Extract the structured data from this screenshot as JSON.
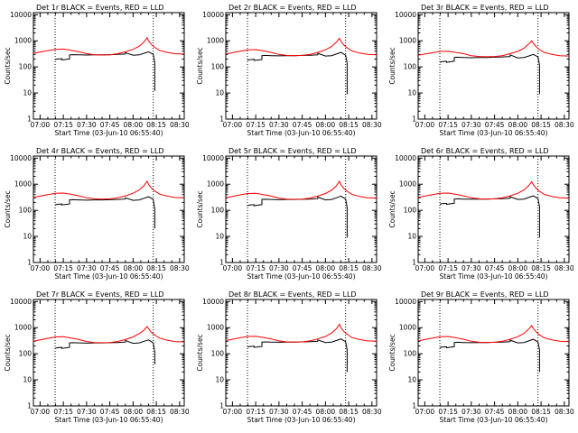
{
  "chart_data": {
    "type": "line",
    "layout": "3x3 grid",
    "common": {
      "xlabel": "Start Time (03-Jun-10 06:55:40)",
      "ylabel": "Counts/sec",
      "x_tick_labels": [
        "07:00",
        "07:15",
        "07:30",
        "07:45",
        "08:00",
        "08:15",
        "08:30"
      ],
      "x_tick_minutes": [
        0,
        15,
        30,
        45,
        60,
        75,
        90
      ],
      "xlim_minutes": [
        -4.3,
        93
      ],
      "y_tick_labels": [
        "1",
        "10",
        "100",
        "1000",
        "10000"
      ],
      "y_tick_values": [
        1,
        10,
        100,
        1000,
        10000
      ],
      "ylim": [
        1,
        12000
      ],
      "y_scale": "log",
      "vertical_dotted_lines_minutes": [
        9.7,
        73
      ],
      "colors": {
        "events": "#000000",
        "lld": "#ff0000"
      }
    },
    "panels": [
      {
        "title": "Det 1r BLACK = Events, RED = LLD",
        "series": [
          {
            "name": "Events",
            "x": [
              9.7,
              11,
              14,
              14,
              17,
              19,
              19,
              21,
              25,
              30,
              35,
              40,
              45,
              50,
              55,
              55,
              60,
              64,
              67,
              70,
              73,
              74,
              74
            ],
            "y": [
              190,
              200,
              205,
              185,
              195,
              200,
              290,
              295,
              290,
              285,
              290,
              290,
              295,
              300,
              310,
              350,
              280,
              290,
              330,
              380,
              300,
              150,
              12
            ]
          },
          {
            "name": "LLD",
            "x": [
              -4.3,
              0,
              5,
              10,
              15,
              20,
              25,
              30,
              35,
              40,
              45,
              50,
              55,
              60,
              64,
              67,
              69,
              70,
              72,
              74,
              77,
              82,
              87,
              93
            ],
            "y": [
              330,
              370,
              420,
              470,
              480,
              430,
              380,
              320,
              290,
              285,
              290,
              320,
              380,
              470,
              620,
              900,
              1300,
              1000,
              700,
              560,
              430,
              360,
              320,
              310
            ]
          }
        ]
      },
      {
        "title": "Det 2r BLACK = Events, RED = LLD",
        "series": [
          {
            "name": "Events",
            "x": [
              9.7,
              11,
              14,
              14,
              17,
              19,
              19,
              21,
              25,
              30,
              35,
              40,
              45,
              50,
              55,
              55,
              60,
              64,
              67,
              70,
              73,
              74,
              74
            ],
            "y": [
              180,
              190,
              195,
              175,
              185,
              190,
              270,
              275,
              270,
              265,
              270,
              270,
              275,
              280,
              290,
              330,
              260,
              270,
              310,
              360,
              280,
              140,
              9
            ]
          },
          {
            "name": "LLD",
            "x": [
              -4.3,
              0,
              5,
              10,
              15,
              20,
              25,
              30,
              35,
              40,
              45,
              50,
              55,
              60,
              64,
              67,
              69,
              70,
              72,
              74,
              77,
              82,
              87,
              93
            ],
            "y": [
              310,
              350,
              400,
              450,
              460,
              410,
              360,
              300,
              275,
              270,
              275,
              300,
              360,
              450,
              600,
              880,
              1250,
              960,
              680,
              540,
              410,
              340,
              300,
              290
            ]
          }
        ]
      },
      {
        "title": "Det 3r BLACK = Events, RED = LLD",
        "series": [
          {
            "name": "Events",
            "x": [
              9.7,
              11,
              14,
              14,
              17,
              19,
              19,
              21,
              25,
              30,
              35,
              40,
              45,
              50,
              55,
              55,
              60,
              64,
              67,
              70,
              73,
              74,
              74
            ],
            "y": [
              150,
              160,
              165,
              150,
              160,
              165,
              230,
              235,
              230,
              225,
              230,
              230,
              235,
              240,
              250,
              290,
              220,
              230,
              260,
              300,
              240,
              120,
              9
            ]
          },
          {
            "name": "LLD",
            "x": [
              -4.3,
              0,
              5,
              10,
              15,
              20,
              25,
              30,
              35,
              40,
              45,
              50,
              55,
              60,
              64,
              67,
              69,
              70,
              72,
              74,
              77,
              82,
              87,
              93
            ],
            "y": [
              280,
              310,
              350,
              390,
              400,
              360,
              320,
              270,
              250,
              245,
              250,
              270,
              320,
              390,
              520,
              750,
              1000,
              800,
              580,
              460,
              360,
              300,
              270,
              260
            ]
          }
        ]
      },
      {
        "title": "Det 4r BLACK = Events, RED = LLD",
        "series": [
          {
            "name": "Events",
            "x": [
              9.7,
              11,
              14,
              14,
              17,
              19,
              19,
              21,
              25,
              30,
              35,
              40,
              45,
              50,
              55,
              55,
              60,
              64,
              67,
              70,
              73,
              74,
              74
            ],
            "y": [
              160,
              170,
              175,
              160,
              170,
              175,
              250,
              255,
              250,
              245,
              250,
              250,
              255,
              260,
              270,
              300,
              240,
              250,
              290,
              330,
              260,
              110,
              20
            ]
          },
          {
            "name": "LLD",
            "x": [
              -4.3,
              0,
              5,
              10,
              15,
              20,
              25,
              30,
              35,
              40,
              45,
              50,
              55,
              60,
              64,
              67,
              69,
              70,
              72,
              74,
              77,
              82,
              87,
              93
            ],
            "y": [
              310,
              350,
              400,
              450,
              460,
              410,
              360,
              300,
              275,
              270,
              275,
              300,
              360,
              450,
              600,
              880,
              1300,
              980,
              690,
              550,
              420,
              350,
              310,
              300
            ]
          }
        ]
      },
      {
        "title": "Det 5r BLACK = Events, RED = LLD",
        "series": [
          {
            "name": "Events",
            "x": [
              9.7,
              11,
              14,
              14,
              17,
              19,
              19,
              21,
              25,
              30,
              35,
              40,
              45,
              50,
              55,
              55,
              60,
              64,
              67,
              70,
              73,
              74,
              74
            ],
            "y": [
              150,
              160,
              165,
              150,
              160,
              165,
              260,
              265,
              260,
              255,
              260,
              260,
              265,
              270,
              280,
              320,
              250,
              260,
              300,
              350,
              270,
              130,
              9
            ]
          },
          {
            "name": "LLD",
            "x": [
              -4.3,
              0,
              5,
              10,
              15,
              20,
              25,
              30,
              35,
              40,
              45,
              50,
              55,
              60,
              64,
              67,
              69,
              70,
              72,
              74,
              77,
              82,
              87,
              93
            ],
            "y": [
              300,
              340,
              390,
              440,
              450,
              400,
              350,
              295,
              270,
              265,
              270,
              295,
              350,
              440,
              590,
              870,
              1300,
              960,
              680,
              540,
              410,
              340,
              300,
              290
            ]
          }
        ]
      },
      {
        "title": "Det 6r BLACK = Events, RED = LLD",
        "series": [
          {
            "name": "Events",
            "x": [
              9.7,
              11,
              14,
              14,
              17,
              19,
              19,
              21,
              25,
              30,
              35,
              40,
              45,
              50,
              55,
              55,
              60,
              64,
              67,
              70,
              73,
              74,
              74
            ],
            "y": [
              170,
              180,
              185,
              170,
              180,
              185,
              270,
              275,
              270,
              265,
              270,
              270,
              275,
              280,
              290,
              330,
              260,
              270,
              310,
              360,
              280,
              140,
              9
            ]
          },
          {
            "name": "LLD",
            "x": [
              -4.3,
              0,
              5,
              10,
              15,
              20,
              25,
              30,
              35,
              40,
              45,
              50,
              55,
              60,
              64,
              67,
              69,
              70,
              72,
              74,
              77,
              82,
              87,
              93
            ],
            "y": [
              310,
              350,
              400,
              450,
              460,
              410,
              360,
              300,
              275,
              270,
              275,
              300,
              360,
              450,
              600,
              880,
              1250,
              960,
              680,
              540,
              410,
              340,
              300,
              290
            ]
          }
        ]
      },
      {
        "title": "Det 7r BLACK = Events, RED = LLD",
        "series": [
          {
            "name": "Events",
            "x": [
              9.7,
              11,
              14,
              14,
              17,
              19,
              19,
              21,
              25,
              30,
              35,
              40,
              45,
              50,
              55,
              55,
              60,
              64,
              67,
              70,
              73,
              74,
              74
            ],
            "y": [
              160,
              170,
              175,
              160,
              170,
              175,
              260,
              265,
              260,
              255,
              260,
              260,
              265,
              270,
              280,
              320,
              250,
              260,
              300,
              340,
              260,
              120,
              40
            ]
          },
          {
            "name": "LLD",
            "x": [
              -4.3,
              0,
              5,
              10,
              15,
              20,
              25,
              30,
              35,
              40,
              45,
              50,
              55,
              60,
              64,
              67,
              69,
              70,
              72,
              74,
              77,
              82,
              87,
              93
            ],
            "y": [
              300,
              340,
              390,
              440,
              450,
              400,
              350,
              295,
              270,
              265,
              270,
              295,
              350,
              440,
              590,
              800,
              1100,
              900,
              640,
              520,
              400,
              330,
              295,
              285
            ]
          }
        ]
      },
      {
        "title": "Det 8r BLACK = Events, RED = LLD",
        "series": [
          {
            "name": "Events",
            "x": [
              9.7,
              11,
              14,
              14,
              17,
              19,
              19,
              21,
              25,
              30,
              35,
              40,
              45,
              50,
              55,
              55,
              60,
              64,
              67,
              70,
              73,
              74,
              74
            ],
            "y": [
              180,
              190,
              195,
              175,
              185,
              190,
              280,
              285,
              280,
              275,
              280,
              280,
              285,
              290,
              300,
              340,
              270,
              280,
              320,
              370,
              290,
              140,
              20
            ]
          },
          {
            "name": "LLD",
            "x": [
              -4.3,
              0,
              5,
              10,
              15,
              20,
              25,
              30,
              35,
              40,
              45,
              50,
              55,
              60,
              64,
              67,
              69,
              70,
              72,
              74,
              77,
              82,
              87,
              93
            ],
            "y": [
              320,
              360,
              410,
              460,
              470,
              420,
              370,
              310,
              285,
              280,
              285,
              310,
              370,
              460,
              620,
              900,
              1350,
              1000,
              700,
              560,
              420,
              350,
              310,
              300
            ]
          }
        ]
      },
      {
        "title": "Det 9r BLACK = Events, RED = LLD",
        "series": [
          {
            "name": "Events",
            "x": [
              9.7,
              11,
              14,
              14,
              17,
              19,
              19,
              21,
              25,
              30,
              35,
              40,
              45,
              50,
              55,
              55,
              60,
              64,
              67,
              70,
              73,
              74,
              74
            ],
            "y": [
              170,
              180,
              185,
              170,
              180,
              185,
              270,
              275,
              270,
              265,
              270,
              270,
              275,
              280,
              290,
              330,
              260,
              270,
              310,
              360,
              280,
              140,
              20
            ]
          },
          {
            "name": "LLD",
            "x": [
              -4.3,
              0,
              5,
              10,
              15,
              20,
              25,
              30,
              35,
              40,
              45,
              50,
              55,
              60,
              64,
              67,
              69,
              70,
              72,
              74,
              77,
              82,
              87,
              93
            ],
            "y": [
              310,
              350,
              400,
              450,
              460,
              410,
              360,
              300,
              275,
              270,
              275,
              300,
              360,
              450,
              600,
              880,
              1200,
              940,
              670,
              530,
              410,
              340,
              300,
              290
            ]
          }
        ]
      }
    ]
  }
}
